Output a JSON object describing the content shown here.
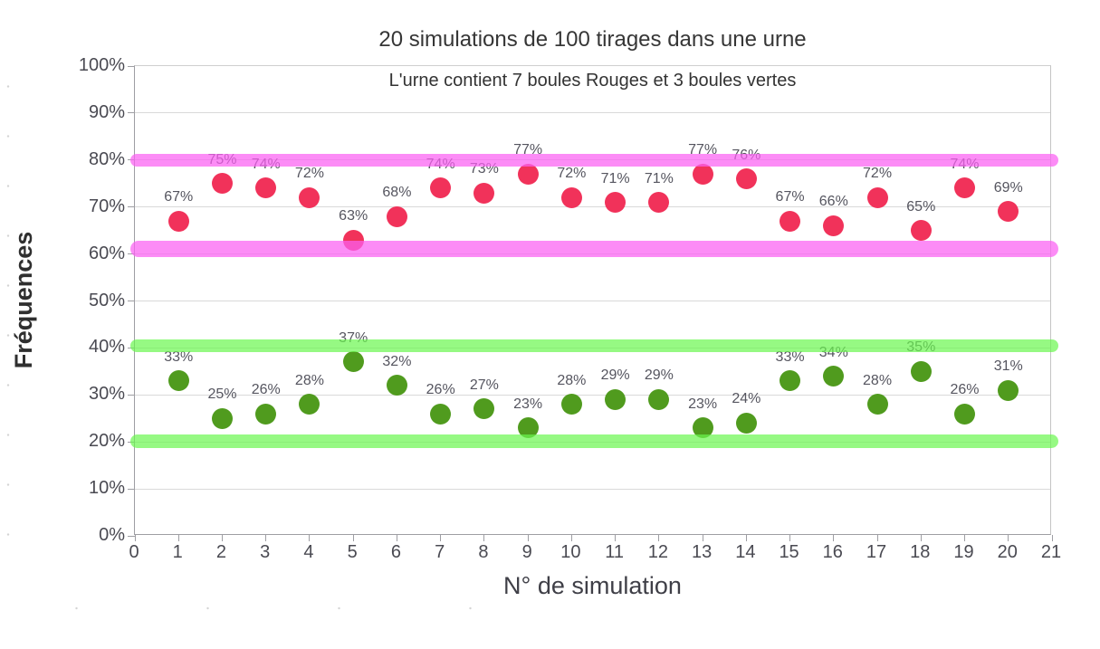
{
  "chart_data": {
    "type": "scatter",
    "title": "20 simulations de 100 tirages dans une urne",
    "subtitle": "L'urne contient 7 boules Rouges et 3 boules vertes",
    "xlabel": "N° de simulation",
    "ylabel": "Fréquences",
    "xlim": [
      0,
      21
    ],
    "ylim": [
      0,
      100
    ],
    "grid": true,
    "legend": false,
    "x_ticks": [
      0,
      1,
      2,
      3,
      4,
      5,
      6,
      7,
      8,
      9,
      10,
      11,
      12,
      13,
      14,
      15,
      16,
      17,
      18,
      19,
      20,
      21
    ],
    "y_ticks": [
      {
        "value": 0,
        "label": "0%"
      },
      {
        "value": 10,
        "label": "10%"
      },
      {
        "value": 20,
        "label": "20%"
      },
      {
        "value": 30,
        "label": "30%"
      },
      {
        "value": 40,
        "label": "40%"
      },
      {
        "value": 50,
        "label": "50%"
      },
      {
        "value": 60,
        "label": "60%"
      },
      {
        "value": 70,
        "label": "70%"
      },
      {
        "value": 80,
        "label": "80%"
      },
      {
        "value": 90,
        "label": "90%"
      },
      {
        "value": 100,
        "label": "100%"
      }
    ],
    "point_label_suffix": "%",
    "x": [
      1,
      2,
      3,
      4,
      5,
      6,
      7,
      8,
      9,
      10,
      11,
      12,
      13,
      14,
      15,
      16,
      17,
      18,
      19,
      20
    ],
    "series": [
      {
        "name": "frequences-rouges",
        "color": "#F1325A",
        "values": [
          67,
          75,
          74,
          72,
          63,
          68,
          74,
          73,
          77,
          72,
          71,
          71,
          77,
          76,
          67,
          66,
          72,
          65,
          74,
          69
        ]
      },
      {
        "name": "frequences-vertes",
        "color": "#509B1E",
        "values": [
          33,
          25,
          26,
          28,
          37,
          32,
          26,
          27,
          23,
          28,
          29,
          29,
          23,
          24,
          33,
          34,
          28,
          35,
          26,
          31
        ]
      }
    ],
    "bands": [
      {
        "name": "bande-magenta-haute",
        "y": 80.0,
        "half_height_pct": 1.35,
        "color": "#FB60F3",
        "opacity": 0.72
      },
      {
        "name": "bande-magenta-basse",
        "y": 61.0,
        "half_height_pct": 1.75,
        "color": "#FB60F3",
        "opacity": 0.72
      },
      {
        "name": "bande-verte-haute",
        "y": 40.4,
        "half_height_pct": 1.35,
        "color": "#69F64E",
        "opacity": 0.7
      },
      {
        "name": "bande-verte-basse",
        "y": 20.1,
        "half_height_pct": 1.5,
        "color": "#69F64E",
        "opacity": 0.7
      }
    ],
    "colors": {
      "grid": "#d9d9d9",
      "axis": "#9e9ea3",
      "tick_label": "#4a4a52",
      "point_label": "#55555f",
      "title": "#363636"
    }
  }
}
